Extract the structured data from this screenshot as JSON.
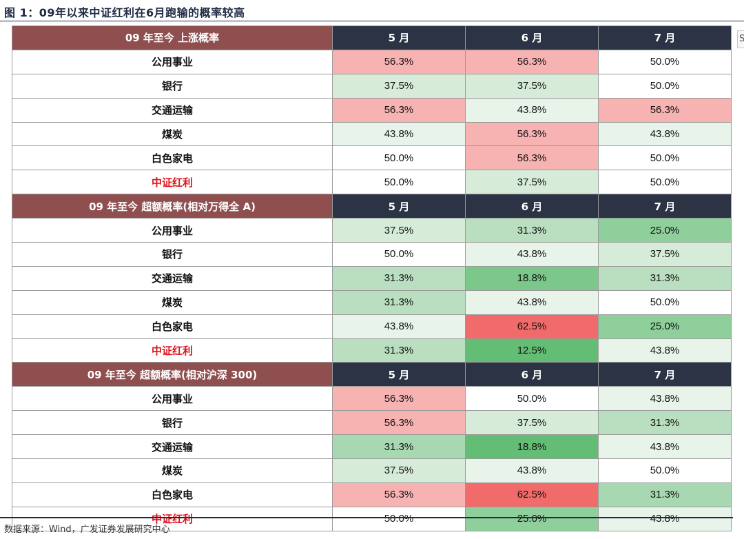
{
  "title": "图 1：09年以来中证红利在6月跑输的概率较高",
  "right_mark": "S",
  "sections": [
    {
      "title": "09 年至今 上涨概率",
      "months": [
        "5 月",
        "6 月",
        "7 月"
      ],
      "rows": [
        {
          "label": "公用事业",
          "highlight": false,
          "values": [
            "56.3%",
            "56.3%",
            "50.0%"
          ],
          "colors": [
            "#f7b2b2",
            "#f7b2b2",
            "#ffffff"
          ]
        },
        {
          "label": "银行",
          "highlight": false,
          "values": [
            "37.5%",
            "37.5%",
            "50.0%"
          ],
          "colors": [
            "#d6ecd9",
            "#d6ecd9",
            "#ffffff"
          ]
        },
        {
          "label": "交通运输",
          "highlight": false,
          "values": [
            "56.3%",
            "43.8%",
            "56.3%"
          ],
          "colors": [
            "#f7b2b2",
            "#e8f4ea",
            "#f7b2b2"
          ]
        },
        {
          "label": "煤炭",
          "highlight": false,
          "values": [
            "43.8%",
            "56.3%",
            "43.8%"
          ],
          "colors": [
            "#e8f4ea",
            "#f7b2b2",
            "#e8f4ea"
          ]
        },
        {
          "label": "白色家电",
          "highlight": false,
          "values": [
            "50.0%",
            "56.3%",
            "50.0%"
          ],
          "colors": [
            "#ffffff",
            "#f7b2b2",
            "#ffffff"
          ]
        },
        {
          "label": "中证红利",
          "highlight": true,
          "values": [
            "50.0%",
            "37.5%",
            "50.0%"
          ],
          "colors": [
            "#ffffff",
            "#d6ecd9",
            "#ffffff"
          ]
        }
      ]
    },
    {
      "title": "09 年至今 超额概率(相对万得全 A)",
      "months": [
        "5 月",
        "6 月",
        "7 月"
      ],
      "rows": [
        {
          "label": "公用事业",
          "highlight": false,
          "values": [
            "37.5%",
            "31.3%",
            "25.0%"
          ],
          "colors": [
            "#d6ecd9",
            "#b9dfc0",
            "#8fcf9b"
          ]
        },
        {
          "label": "银行",
          "highlight": false,
          "values": [
            "50.0%",
            "43.8%",
            "37.5%"
          ],
          "colors": [
            "#ffffff",
            "#e8f4ea",
            "#d6ecd9"
          ]
        },
        {
          "label": "交通运输",
          "highlight": false,
          "values": [
            "31.3%",
            "18.8%",
            "31.3%"
          ],
          "colors": [
            "#b9dfc0",
            "#7cc78a",
            "#b9dfc0"
          ]
        },
        {
          "label": "煤炭",
          "highlight": false,
          "values": [
            "31.3%",
            "43.8%",
            "50.0%"
          ],
          "colors": [
            "#b9dfc0",
            "#e8f4ea",
            "#ffffff"
          ]
        },
        {
          "label": "白色家电",
          "highlight": false,
          "values": [
            "43.8%",
            "62.5%",
            "25.0%"
          ],
          "colors": [
            "#e8f4ea",
            "#f26b6b",
            "#8fcf9b"
          ]
        },
        {
          "label": "中证红利",
          "highlight": true,
          "values": [
            "31.3%",
            "12.5%",
            "43.8%"
          ],
          "colors": [
            "#b9dfc0",
            "#63bd74",
            "#e8f4ea"
          ]
        }
      ]
    },
    {
      "title": "09 年至今 超额概率(相对沪深 300)",
      "months": [
        "5 月",
        "6 月",
        "7 月"
      ],
      "rows": [
        {
          "label": "公用事业",
          "highlight": false,
          "values": [
            "56.3%",
            "50.0%",
            "43.8%"
          ],
          "colors": [
            "#f7b2b2",
            "#ffffff",
            "#e8f4ea"
          ]
        },
        {
          "label": "银行",
          "highlight": false,
          "values": [
            "56.3%",
            "37.5%",
            "31.3%"
          ],
          "colors": [
            "#f7b2b2",
            "#d6ecd9",
            "#b9dfc0"
          ]
        },
        {
          "label": "交通运输",
          "highlight": false,
          "values": [
            "31.3%",
            "18.8%",
            "43.8%"
          ],
          "colors": [
            "#a8d8b2",
            "#63bd74",
            "#e8f4ea"
          ]
        },
        {
          "label": "煤炭",
          "highlight": false,
          "values": [
            "37.5%",
            "43.8%",
            "50.0%"
          ],
          "colors": [
            "#d6ecd9",
            "#e8f4ea",
            "#ffffff"
          ]
        },
        {
          "label": "白色家电",
          "highlight": false,
          "values": [
            "56.3%",
            "62.5%",
            "31.3%"
          ],
          "colors": [
            "#f7b2b2",
            "#f26b6b",
            "#a8d8b2"
          ]
        },
        {
          "label": "中证红利",
          "highlight": true,
          "values": [
            "50.0%",
            "25.0%",
            "43.8%"
          ],
          "colors": [
            "#ffffff",
            "#8fcf9b",
            "#e8f4ea"
          ]
        }
      ]
    }
  ],
  "source": "数据来源：Wind，广发证券发展研究中心"
}
